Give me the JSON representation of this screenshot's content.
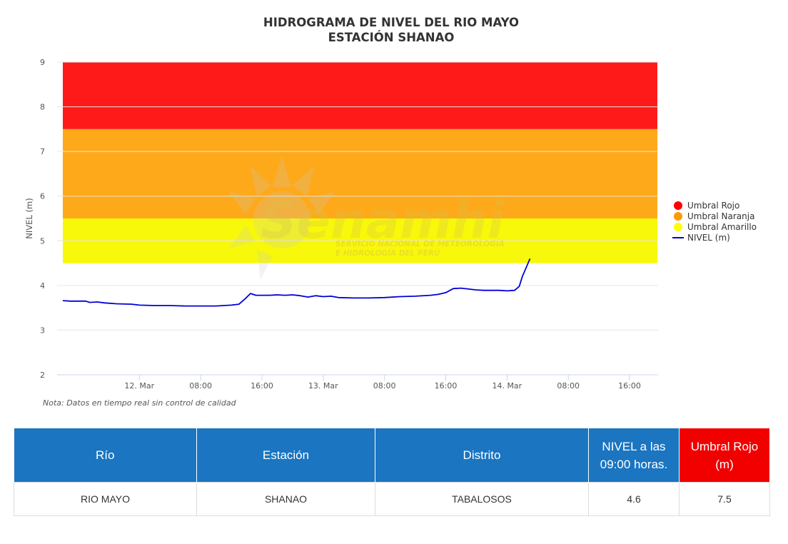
{
  "chart_data": {
    "type": "line",
    "title": "HIDROGRAMA DE NIVEL DEL RIO MAYO",
    "subtitle": "ESTACIÓN SHANAO",
    "ylabel": "NIVEL (m)",
    "ylim": [
      2,
      9
    ],
    "yticks": [
      "2",
      "3",
      "4",
      "5",
      "6",
      "7",
      "8",
      "9"
    ],
    "x_range_hours": [
      0,
      72
    ],
    "xticks": [
      {
        "hour": 10,
        "label": "12. Mar"
      },
      {
        "hour": 18,
        "label": "08:00"
      },
      {
        "hour": 26,
        "label": "16:00"
      },
      {
        "hour": 34,
        "label": "13. Mar"
      },
      {
        "hour": 42,
        "label": "08:00"
      },
      {
        "hour": 50,
        "label": "16:00"
      },
      {
        "hour": 58,
        "label": "14. Mar"
      },
      {
        "hour": 66,
        "label": "08:00"
      },
      {
        "hour": 74,
        "label": "16:00"
      }
    ],
    "bands": [
      {
        "name": "Umbral Rojo",
        "from": 7.5,
        "to": 9,
        "color": "#ff1a1a"
      },
      {
        "name": "Umbral Naranja",
        "from": 5.5,
        "to": 7.5,
        "color": "#fda91a"
      },
      {
        "name": "Umbral Amarillo",
        "from": 4.5,
        "to": 5.5,
        "color": "#f8f80a"
      }
    ],
    "series": [
      {
        "name": "NIVEL (m)",
        "color": "#0000d6",
        "points": [
          [
            0,
            3.66
          ],
          [
            1,
            3.65
          ],
          [
            2,
            3.65
          ],
          [
            3,
            3.65
          ],
          [
            3.5,
            3.62
          ],
          [
            4.5,
            3.63
          ],
          [
            5.5,
            3.61
          ],
          [
            7,
            3.59
          ],
          [
            9,
            3.58
          ],
          [
            10,
            3.56
          ],
          [
            12,
            3.55
          ],
          [
            14,
            3.55
          ],
          [
            16,
            3.54
          ],
          [
            18,
            3.54
          ],
          [
            20,
            3.54
          ],
          [
            21,
            3.55
          ],
          [
            22,
            3.56
          ],
          [
            23,
            3.58
          ],
          [
            23.8,
            3.7
          ],
          [
            24.5,
            3.82
          ],
          [
            25.2,
            3.78
          ],
          [
            27,
            3.78
          ],
          [
            28,
            3.79
          ],
          [
            29,
            3.78
          ],
          [
            30,
            3.79
          ],
          [
            31,
            3.77
          ],
          [
            32,
            3.74
          ],
          [
            33,
            3.77
          ],
          [
            34,
            3.75
          ],
          [
            35,
            3.76
          ],
          [
            36,
            3.73
          ],
          [
            38,
            3.72
          ],
          [
            40,
            3.72
          ],
          [
            42,
            3.73
          ],
          [
            44,
            3.75
          ],
          [
            46,
            3.76
          ],
          [
            48,
            3.78
          ],
          [
            49,
            3.8
          ],
          [
            50,
            3.84
          ],
          [
            51,
            3.93
          ],
          [
            52,
            3.94
          ],
          [
            53,
            3.92
          ],
          [
            54,
            3.9
          ],
          [
            55,
            3.89
          ],
          [
            56,
            3.89
          ],
          [
            57,
            3.89
          ],
          [
            58,
            3.88
          ],
          [
            59,
            3.89
          ],
          [
            59.6,
            3.98
          ],
          [
            60,
            4.2
          ],
          [
            60.5,
            4.4
          ],
          [
            61,
            4.6
          ]
        ]
      }
    ],
    "legend": {
      "position": "right"
    },
    "note": "Nota: Datos en tiempo real sin control de calidad"
  },
  "watermark": {
    "logo": "Senamhi",
    "line1": "SERVICIO NACIONAL DE METEOROLOGÍA",
    "line2": "E HIDROLOGÍA DEL PERÚ"
  },
  "table": {
    "headers": [
      "Río",
      "Estación",
      "Distrito",
      "NIVEL a las 09:00 horas.",
      "Umbral Rojo (m)"
    ],
    "row": [
      "RIO MAYO",
      "SHANAO",
      "TABALOSOS",
      "4.6",
      "7.5"
    ]
  }
}
